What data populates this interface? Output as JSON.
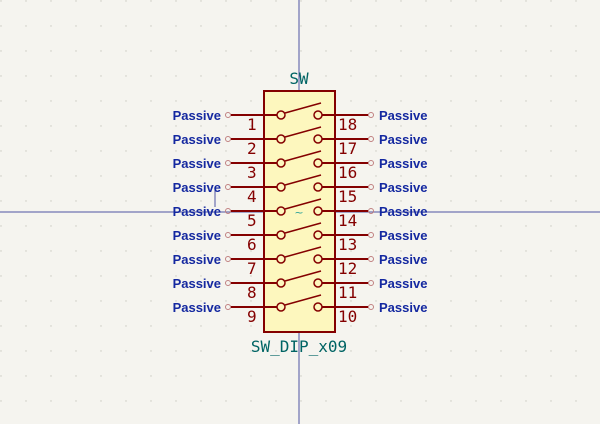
{
  "symbol": {
    "reference": "SW",
    "value": "SW_DIP_x09",
    "marker": "~",
    "colors": {
      "background": "#f5f4ef",
      "body_fill": "#fdf7be",
      "body_stroke": "#840000",
      "pin_line": "#840000",
      "pin_number": "#840000",
      "pin_type": "#1428a0",
      "reference_text": "#006464",
      "crosshair": "#4f55a3",
      "pin_end_circle": "#c08080"
    },
    "left_pins": [
      {
        "number": "1",
        "type": "Passive"
      },
      {
        "number": "2",
        "type": "Passive"
      },
      {
        "number": "3",
        "type": "Passive"
      },
      {
        "number": "4",
        "type": "Passive"
      },
      {
        "number": "5",
        "type": "Passive"
      },
      {
        "number": "6",
        "type": "Passive"
      },
      {
        "number": "7",
        "type": "Passive"
      },
      {
        "number": "8",
        "type": "Passive"
      },
      {
        "number": "9",
        "type": "Passive"
      }
    ],
    "right_pins": [
      {
        "number": "18",
        "type": "Passive"
      },
      {
        "number": "17",
        "type": "Passive"
      },
      {
        "number": "16",
        "type": "Passive"
      },
      {
        "number": "15",
        "type": "Passive"
      },
      {
        "number": "14",
        "type": "Passive"
      },
      {
        "number": "13",
        "type": "Passive"
      },
      {
        "number": "12",
        "type": "Passive"
      },
      {
        "number": "11",
        "type": "Passive"
      },
      {
        "number": "10",
        "type": "Passive"
      }
    ]
  }
}
